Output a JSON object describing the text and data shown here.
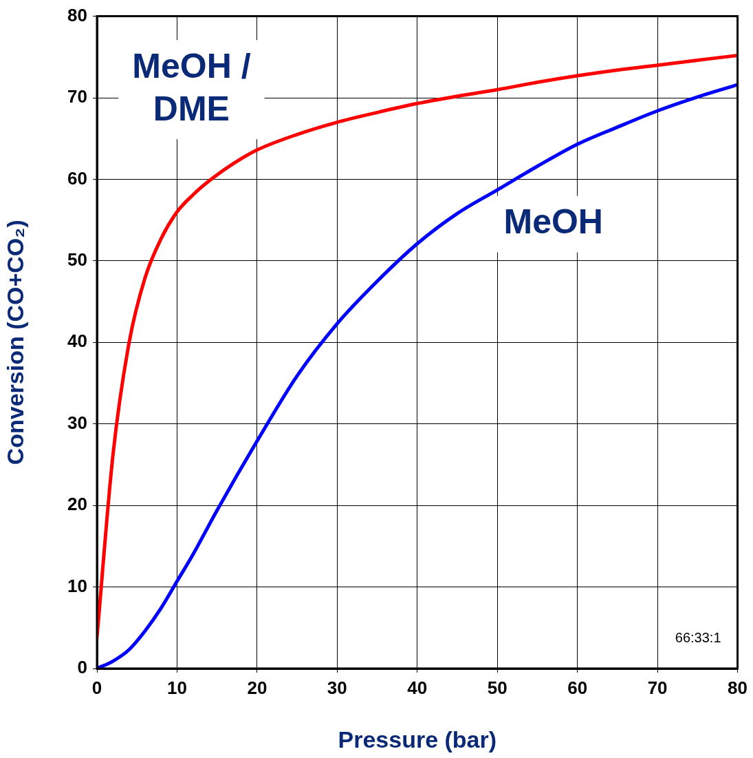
{
  "chart_data": {
    "type": "line",
    "xlabel": "Pressure (bar)",
    "ylabel": "Conversion (CO+CO₂)",
    "xlim": [
      0,
      80
    ],
    "xticks": [
      0,
      10,
      20,
      30,
      40,
      50,
      60,
      70,
      80
    ],
    "ylim": [
      0,
      80
    ],
    "yticks": [
      0,
      10,
      20,
      30,
      40,
      50,
      60,
      70,
      80
    ],
    "grid": true,
    "legend": false,
    "marker": "none",
    "line_style": "solid",
    "annotations": [
      "66:33:1"
    ],
    "series": [
      {
        "name": "MeOH / DME",
        "color": "#ff0000",
        "x": [
          0,
          2,
          4,
          6,
          8,
          10,
          12,
          14,
          17,
          20,
          25,
          30,
          35,
          40,
          45,
          50,
          55,
          60,
          65,
          70,
          75,
          80
        ],
        "values": [
          3.8,
          26.2,
          39.9,
          47.9,
          52.7,
          56,
          58.1,
          59.8,
          61.9,
          63.6,
          65.5,
          67,
          68.2,
          69.3,
          70.2,
          71,
          71.9,
          72.7,
          73.4,
          74,
          74.6,
          75.2
        ]
      },
      {
        "name": "MeOH",
        "color": "#0000ff",
        "x": [
          0,
          2,
          4,
          6,
          8,
          10,
          12,
          15,
          20,
          25,
          30,
          35,
          40,
          45,
          50,
          55,
          60,
          65,
          70,
          75,
          80
        ],
        "values": [
          0,
          0.9,
          2.3,
          4.6,
          7.4,
          10.7,
          14,
          19.4,
          27.9,
          35.9,
          42.3,
          47.5,
          52.1,
          55.8,
          58.7,
          61.6,
          64.3,
          66.4,
          68.4,
          70.1,
          71.6
        ]
      }
    ]
  }
}
